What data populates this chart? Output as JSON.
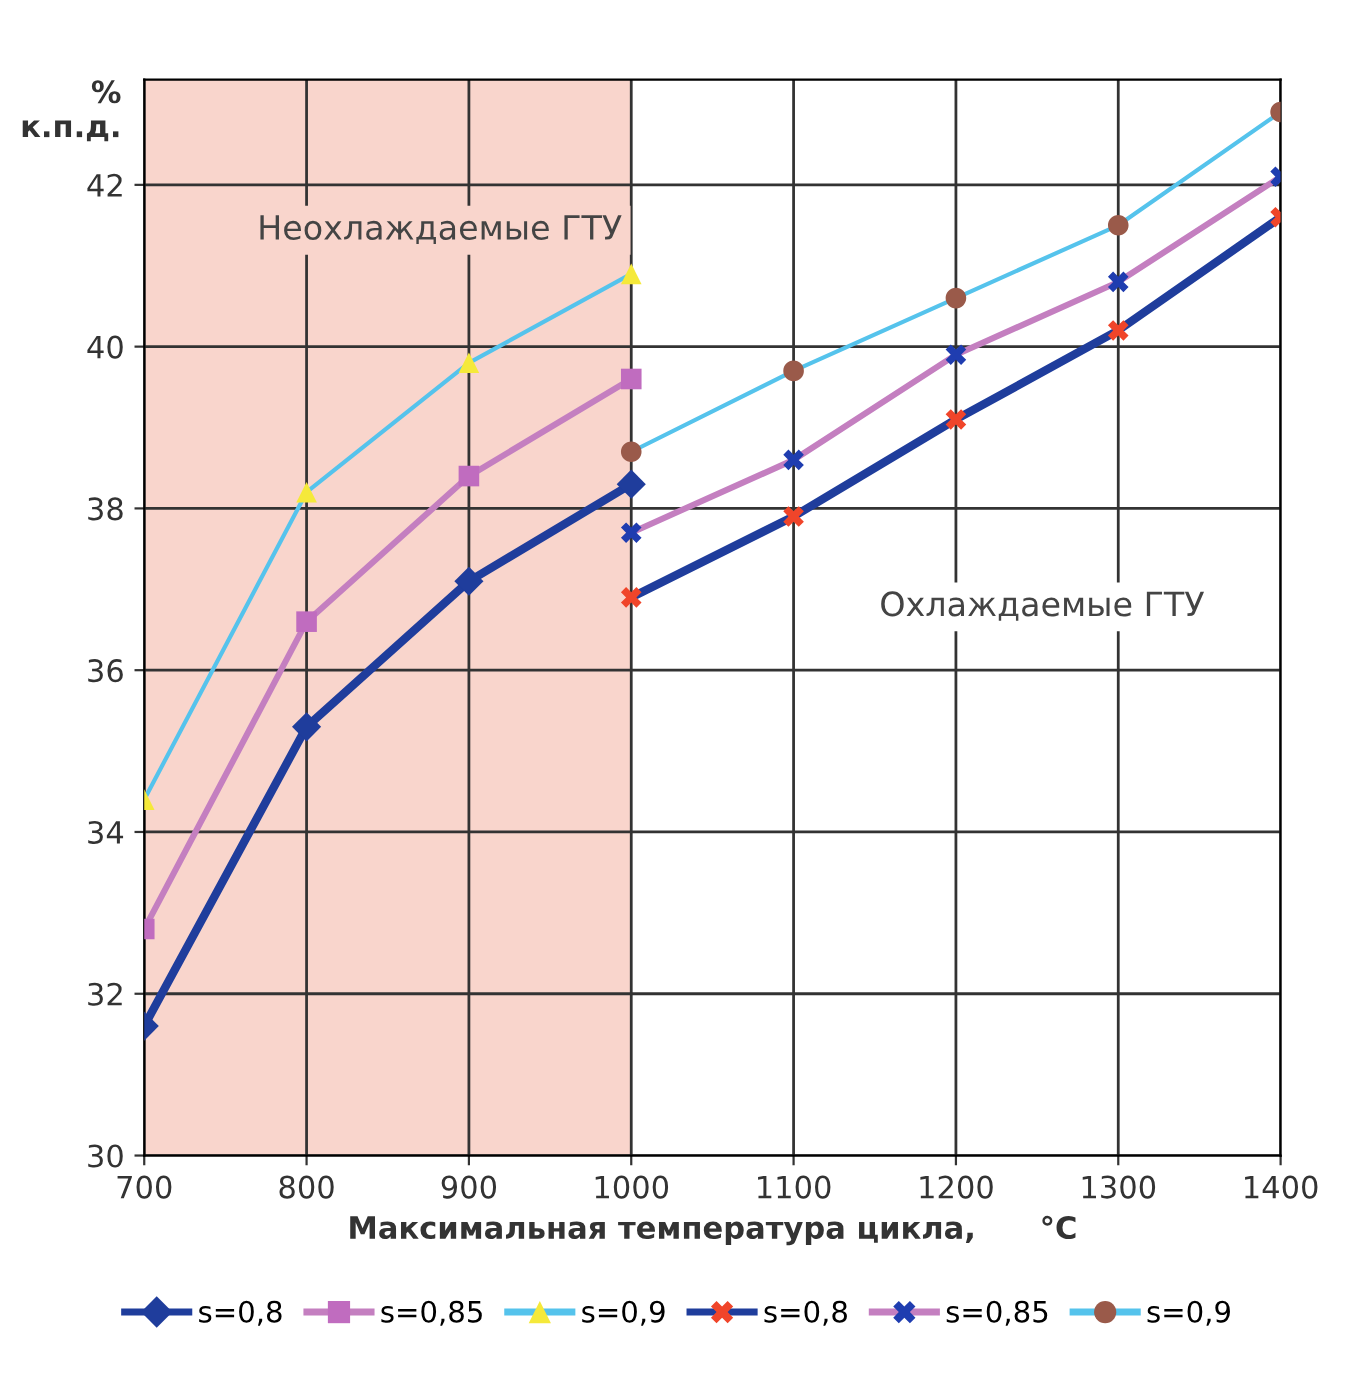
{
  "chart_data": {
    "type": "line",
    "xlabel": "Максимальная температура цикла,      °C",
    "ylabel": "%\nк.п.д.",
    "x": [
      700,
      800,
      900,
      1000
    ],
    "series": [
      {
        "name": "s=0,8",
        "color": "#1f3d9c",
        "colors": [
          "#1f3d9c",
          "#1f3d9c",
          "#1f3d9c",
          "#1f3d9c"
        ],
        "marker": "diamond",
        "values": [
          31.6,
          35.3,
          37.1,
          38.3
        ]
      },
      {
        "name": "s=0,85",
        "color": "#c47fc0",
        "colors": [
          "#c06cbf",
          "#c06cbf",
          "#c06cbf",
          "#c06cbf"
        ],
        "marker": "square",
        "values": [
          32.8,
          36.6,
          38.4,
          39.6
        ]
      },
      {
        "name": "s=0,9",
        "color": "#55c3ec",
        "colors": [
          "#f5e93a",
          "#f5e93a",
          "#f5e93a",
          "#f5e93a"
        ],
        "marker": "triangle",
        "values": [
          34.4,
          38.2,
          39.8,
          40.9
        ]
      },
      {
        "name": "s=0,8",
        "color": "#1f3d9c",
        "colors": [
          "#f0452a",
          "#f0452a",
          "#f0452a",
          "#f0452a",
          "#f0452a"
        ],
        "marker": "cross",
        "x": [
          1000,
          1100,
          1200,
          1300,
          1400
        ],
        "values": [
          36.9,
          37.9,
          39.1,
          40.2,
          41.6
        ]
      },
      {
        "name": "s=0,85",
        "color": "#c47fc0",
        "colors": [
          "#1f3db0",
          "#1f3db0",
          "#1f3db0",
          "#1f3db0",
          "#1f3db0"
        ],
        "marker": "cross",
        "x": [
          1000,
          1100,
          1200,
          1300,
          1400
        ],
        "values": [
          37.7,
          38.6,
          39.9,
          40.8,
          42.1
        ]
      },
      {
        "name": "s=0,9",
        "color": "#55c3ec",
        "colors": [
          "#9a5a4a",
          "#9a5a4a",
          "#9a5a4a",
          "#9a5a4a",
          "#9a5a4a"
        ],
        "marker": "circle",
        "x": [
          1000,
          1100,
          1200,
          1300,
          1400
        ],
        "values": [
          38.7,
          39.7,
          40.6,
          41.5,
          42.9
        ]
      }
    ],
    "xlim": [
      700,
      1400
    ],
    "xticks": [
      700,
      800,
      900,
      1000,
      1100,
      1200,
      1300,
      1400
    ],
    "ylim": [
      30,
      43.3
    ],
    "yticks": [
      30,
      32,
      34,
      36,
      38,
      40,
      42
    ],
    "bands": [
      {
        "axis": "x",
        "from": 700,
        "to": 1000,
        "color": "#f9d5cc"
      }
    ],
    "annotations": [
      "Неохлаждаемые ГТУ",
      "Охлаждаемые ГТУ"
    ],
    "grid": true,
    "legend": "bottom"
  }
}
